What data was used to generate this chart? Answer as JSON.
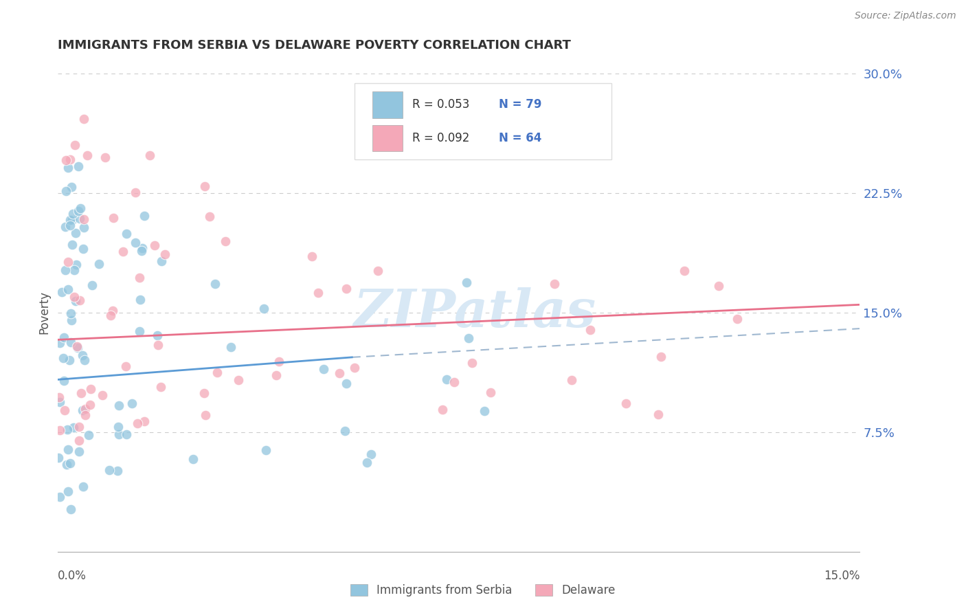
{
  "title": "IMMIGRANTS FROM SERBIA VS DELAWARE POVERTY CORRELATION CHART",
  "source": "Source: ZipAtlas.com",
  "ylabel": "Poverty",
  "ytick_vals": [
    0.075,
    0.15,
    0.225,
    0.3
  ],
  "ytick_labels": [
    "7.5%",
    "15.0%",
    "22.5%",
    "30.0%"
  ],
  "xlim": [
    0.0,
    0.15
  ],
  "ylim": [
    0.0,
    0.3
  ],
  "legend_r1": "R = 0.053",
  "legend_n1": "N = 79",
  "legend_r2": "R = 0.092",
  "legend_n2": "N = 64",
  "legend_label1": "Immigrants from Serbia",
  "legend_label2": "Delaware",
  "color_blue": "#92C5DE",
  "color_pink": "#F4A8B8",
  "color_blue_line": "#5B9BD5",
  "color_pink_line": "#E8708A",
  "color_blue_text": "#4472C4",
  "color_dashed": "#A0B8D0",
  "watermark": "ZIPatlas",
  "watermark_color": "#D8E8F5",
  "grid_color": "#CCCCCC",
  "title_color": "#333333",
  "source_color": "#888888"
}
